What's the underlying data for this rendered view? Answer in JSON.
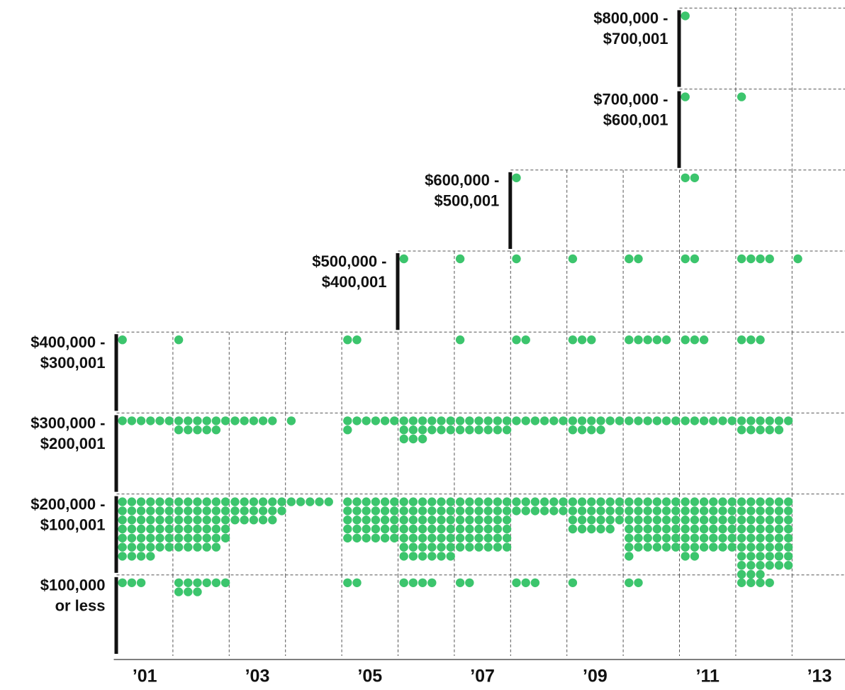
{
  "chart_data": {
    "type": "scatter",
    "title": "",
    "xlabel": "",
    "ylabel": "",
    "x_ticks": [
      "’01",
      "’03",
      "’05",
      "’07",
      "’09",
      "’11",
      "’13"
    ],
    "bands": [
      {
        "id": "b0",
        "label_lines": [
          "$100,000",
          "or less"
        ],
        "start_year": 2001,
        "counts": [
          3,
          9,
          0,
          0,
          2,
          4,
          2,
          3,
          1,
          2,
          0,
          4,
          0
        ]
      },
      {
        "id": "b1",
        "label_lines": [
          "$200,000 -",
          "$100,001"
        ],
        "start_year": 2001,
        "counts": [
          40,
          35,
          17,
          5,
          30,
          42,
          36,
          12,
          23,
          37,
          38,
          51,
          0
        ]
      },
      {
        "id": "b2",
        "label_lines": [
          "$300,000 -",
          "$200,001"
        ],
        "start_year": 2001,
        "counts": [
          6,
          11,
          5,
          1,
          7,
          15,
          12,
          6,
          10,
          6,
          6,
          11,
          0
        ]
      },
      {
        "id": "b3",
        "label_lines": [
          "$400,000 -",
          "$300,001"
        ],
        "start_year": 2001,
        "counts": [
          1,
          1,
          0,
          0,
          2,
          0,
          1,
          2,
          3,
          5,
          3,
          3,
          0
        ]
      },
      {
        "id": "b4",
        "label_lines": [
          "$500,000 -",
          "$400,001"
        ],
        "start_year": 2006,
        "counts": [
          1,
          1,
          1,
          1,
          2,
          2,
          4,
          1
        ]
      },
      {
        "id": "b5",
        "label_lines": [
          "$600,000 -",
          "$500,001"
        ],
        "start_year": 2008,
        "counts": [
          1,
          0,
          0,
          2,
          0,
          0
        ]
      },
      {
        "id": "b6",
        "label_lines": [
          "$700,000 -",
          "$600,001"
        ],
        "start_year": 2011,
        "counts": [
          1,
          1,
          0
        ]
      },
      {
        "id": "b7",
        "label_lines": [
          "$800,000 -",
          "$700,001"
        ],
        "start_year": 2011,
        "counts": [
          1,
          0,
          0
        ]
      }
    ]
  },
  "colors": {
    "dot": "#3cc56d",
    "grid": "#555555",
    "bar": "#111111"
  }
}
